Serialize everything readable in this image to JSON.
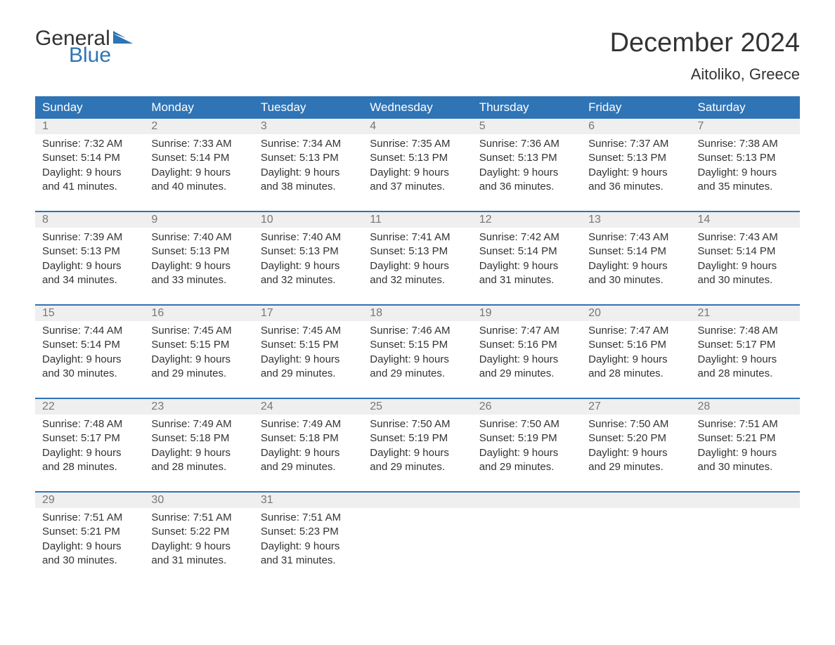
{
  "logo": {
    "text1": "General",
    "text2": "Blue",
    "flag_color": "#2f74b5"
  },
  "title": "December 2024",
  "location": "Aitoliko, Greece",
  "colors": {
    "header_bg": "#2f74b5",
    "header_fg": "#ffffff",
    "daynum_bg": "#efefef",
    "daynum_fg": "#777777",
    "border": "#2f74b5",
    "text": "#333333",
    "background": "#ffffff"
  },
  "weekdays": [
    "Sunday",
    "Monday",
    "Tuesday",
    "Wednesday",
    "Thursday",
    "Friday",
    "Saturday"
  ],
  "weeks": [
    [
      {
        "n": "1",
        "sr": "Sunrise: 7:32 AM",
        "ss": "Sunset: 5:14 PM",
        "d1": "Daylight: 9 hours",
        "d2": "and 41 minutes."
      },
      {
        "n": "2",
        "sr": "Sunrise: 7:33 AM",
        "ss": "Sunset: 5:14 PM",
        "d1": "Daylight: 9 hours",
        "d2": "and 40 minutes."
      },
      {
        "n": "3",
        "sr": "Sunrise: 7:34 AM",
        "ss": "Sunset: 5:13 PM",
        "d1": "Daylight: 9 hours",
        "d2": "and 38 minutes."
      },
      {
        "n": "4",
        "sr": "Sunrise: 7:35 AM",
        "ss": "Sunset: 5:13 PM",
        "d1": "Daylight: 9 hours",
        "d2": "and 37 minutes."
      },
      {
        "n": "5",
        "sr": "Sunrise: 7:36 AM",
        "ss": "Sunset: 5:13 PM",
        "d1": "Daylight: 9 hours",
        "d2": "and 36 minutes."
      },
      {
        "n": "6",
        "sr": "Sunrise: 7:37 AM",
        "ss": "Sunset: 5:13 PM",
        "d1": "Daylight: 9 hours",
        "d2": "and 36 minutes."
      },
      {
        "n": "7",
        "sr": "Sunrise: 7:38 AM",
        "ss": "Sunset: 5:13 PM",
        "d1": "Daylight: 9 hours",
        "d2": "and 35 minutes."
      }
    ],
    [
      {
        "n": "8",
        "sr": "Sunrise: 7:39 AM",
        "ss": "Sunset: 5:13 PM",
        "d1": "Daylight: 9 hours",
        "d2": "and 34 minutes."
      },
      {
        "n": "9",
        "sr": "Sunrise: 7:40 AM",
        "ss": "Sunset: 5:13 PM",
        "d1": "Daylight: 9 hours",
        "d2": "and 33 minutes."
      },
      {
        "n": "10",
        "sr": "Sunrise: 7:40 AM",
        "ss": "Sunset: 5:13 PM",
        "d1": "Daylight: 9 hours",
        "d2": "and 32 minutes."
      },
      {
        "n": "11",
        "sr": "Sunrise: 7:41 AM",
        "ss": "Sunset: 5:13 PM",
        "d1": "Daylight: 9 hours",
        "d2": "and 32 minutes."
      },
      {
        "n": "12",
        "sr": "Sunrise: 7:42 AM",
        "ss": "Sunset: 5:14 PM",
        "d1": "Daylight: 9 hours",
        "d2": "and 31 minutes."
      },
      {
        "n": "13",
        "sr": "Sunrise: 7:43 AM",
        "ss": "Sunset: 5:14 PM",
        "d1": "Daylight: 9 hours",
        "d2": "and 30 minutes."
      },
      {
        "n": "14",
        "sr": "Sunrise: 7:43 AM",
        "ss": "Sunset: 5:14 PM",
        "d1": "Daylight: 9 hours",
        "d2": "and 30 minutes."
      }
    ],
    [
      {
        "n": "15",
        "sr": "Sunrise: 7:44 AM",
        "ss": "Sunset: 5:14 PM",
        "d1": "Daylight: 9 hours",
        "d2": "and 30 minutes."
      },
      {
        "n": "16",
        "sr": "Sunrise: 7:45 AM",
        "ss": "Sunset: 5:15 PM",
        "d1": "Daylight: 9 hours",
        "d2": "and 29 minutes."
      },
      {
        "n": "17",
        "sr": "Sunrise: 7:45 AM",
        "ss": "Sunset: 5:15 PM",
        "d1": "Daylight: 9 hours",
        "d2": "and 29 minutes."
      },
      {
        "n": "18",
        "sr": "Sunrise: 7:46 AM",
        "ss": "Sunset: 5:15 PM",
        "d1": "Daylight: 9 hours",
        "d2": "and 29 minutes."
      },
      {
        "n": "19",
        "sr": "Sunrise: 7:47 AM",
        "ss": "Sunset: 5:16 PM",
        "d1": "Daylight: 9 hours",
        "d2": "and 29 minutes."
      },
      {
        "n": "20",
        "sr": "Sunrise: 7:47 AM",
        "ss": "Sunset: 5:16 PM",
        "d1": "Daylight: 9 hours",
        "d2": "and 28 minutes."
      },
      {
        "n": "21",
        "sr": "Sunrise: 7:48 AM",
        "ss": "Sunset: 5:17 PM",
        "d1": "Daylight: 9 hours",
        "d2": "and 28 minutes."
      }
    ],
    [
      {
        "n": "22",
        "sr": "Sunrise: 7:48 AM",
        "ss": "Sunset: 5:17 PM",
        "d1": "Daylight: 9 hours",
        "d2": "and 28 minutes."
      },
      {
        "n": "23",
        "sr": "Sunrise: 7:49 AM",
        "ss": "Sunset: 5:18 PM",
        "d1": "Daylight: 9 hours",
        "d2": "and 28 minutes."
      },
      {
        "n": "24",
        "sr": "Sunrise: 7:49 AM",
        "ss": "Sunset: 5:18 PM",
        "d1": "Daylight: 9 hours",
        "d2": "and 29 minutes."
      },
      {
        "n": "25",
        "sr": "Sunrise: 7:50 AM",
        "ss": "Sunset: 5:19 PM",
        "d1": "Daylight: 9 hours",
        "d2": "and 29 minutes."
      },
      {
        "n": "26",
        "sr": "Sunrise: 7:50 AM",
        "ss": "Sunset: 5:19 PM",
        "d1": "Daylight: 9 hours",
        "d2": "and 29 minutes."
      },
      {
        "n": "27",
        "sr": "Sunrise: 7:50 AM",
        "ss": "Sunset: 5:20 PM",
        "d1": "Daylight: 9 hours",
        "d2": "and 29 minutes."
      },
      {
        "n": "28",
        "sr": "Sunrise: 7:51 AM",
        "ss": "Sunset: 5:21 PM",
        "d1": "Daylight: 9 hours",
        "d2": "and 30 minutes."
      }
    ],
    [
      {
        "n": "29",
        "sr": "Sunrise: 7:51 AM",
        "ss": "Sunset: 5:21 PM",
        "d1": "Daylight: 9 hours",
        "d2": "and 30 minutes."
      },
      {
        "n": "30",
        "sr": "Sunrise: 7:51 AM",
        "ss": "Sunset: 5:22 PM",
        "d1": "Daylight: 9 hours",
        "d2": "and 31 minutes."
      },
      {
        "n": "31",
        "sr": "Sunrise: 7:51 AM",
        "ss": "Sunset: 5:23 PM",
        "d1": "Daylight: 9 hours",
        "d2": "and 31 minutes."
      },
      null,
      null,
      null,
      null
    ]
  ]
}
